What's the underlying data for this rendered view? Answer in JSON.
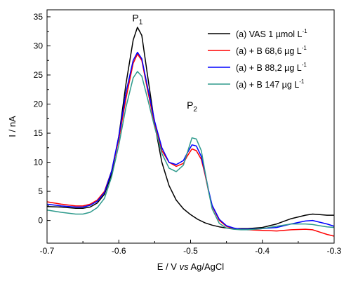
{
  "chart_data": {
    "type": "line",
    "xlabel_prefix": "E / V ",
    "xlabel_italic": "vs",
    "xlabel_suffix": " Ag/AgCl",
    "ylabel": "I / nA",
    "xlim": [
      -0.7,
      -0.3
    ],
    "ylim": [
      -3.9,
      36.2
    ],
    "x_ticks": [
      -0.7,
      -0.6,
      -0.5,
      -0.4,
      -0.3
    ],
    "x_tick_labels": [
      "-0.7",
      "-0.6",
      "-0.5",
      "-0.4",
      "-0.3"
    ],
    "y_ticks": [
      0,
      5,
      10,
      15,
      20,
      25,
      30,
      35
    ],
    "y_tick_labels": [
      "0",
      "5",
      "10",
      "15",
      "20",
      "25",
      "30",
      "35"
    ],
    "grid": false,
    "legend_position": "top-right",
    "annotations": [
      {
        "base": "P",
        "sub": "1",
        "x": -0.574,
        "y": 34.2
      },
      {
        "base": "P",
        "sub": "2",
        "x": -0.498,
        "y": 19.2
      }
    ],
    "series": [
      {
        "label_main": "(a) VAS 1 µmol L",
        "label_sup": "-1",
        "color": "#000000",
        "points": [
          [
            -0.7,
            2.4
          ],
          [
            -0.68,
            2.3
          ],
          [
            -0.66,
            2.1
          ],
          [
            -0.65,
            2.1
          ],
          [
            -0.64,
            2.3
          ],
          [
            -0.63,
            3.0
          ],
          [
            -0.62,
            4.5
          ],
          [
            -0.61,
            8.0
          ],
          [
            -0.6,
            14.5
          ],
          [
            -0.59,
            23.5
          ],
          [
            -0.58,
            31.0
          ],
          [
            -0.574,
            33.2
          ],
          [
            -0.568,
            31.8
          ],
          [
            -0.56,
            25.0
          ],
          [
            -0.55,
            16.5
          ],
          [
            -0.54,
            10.0
          ],
          [
            -0.53,
            6.0
          ],
          [
            -0.52,
            3.5
          ],
          [
            -0.51,
            2.0
          ],
          [
            -0.5,
            1.0
          ],
          [
            -0.49,
            0.2
          ],
          [
            -0.48,
            -0.4
          ],
          [
            -0.47,
            -0.8
          ],
          [
            -0.46,
            -1.1
          ],
          [
            -0.45,
            -1.3
          ],
          [
            -0.44,
            -1.4
          ],
          [
            -0.42,
            -1.4
          ],
          [
            -0.4,
            -1.2
          ],
          [
            -0.38,
            -0.6
          ],
          [
            -0.36,
            0.3
          ],
          [
            -0.34,
            0.9
          ],
          [
            -0.33,
            1.1
          ],
          [
            -0.32,
            1.0
          ],
          [
            -0.31,
            0.9
          ],
          [
            -0.3,
            0.9
          ]
        ]
      },
      {
        "label_main": "(a) + B 68,6 µg L",
        "label_sup": "-1",
        "color": "#ff0000",
        "points": [
          [
            -0.7,
            3.2
          ],
          [
            -0.68,
            2.8
          ],
          [
            -0.66,
            2.5
          ],
          [
            -0.65,
            2.5
          ],
          [
            -0.64,
            2.8
          ],
          [
            -0.63,
            3.5
          ],
          [
            -0.62,
            5.0
          ],
          [
            -0.61,
            8.5
          ],
          [
            -0.6,
            14.0
          ],
          [
            -0.59,
            21.0
          ],
          [
            -0.58,
            27.0
          ],
          [
            -0.574,
            28.6
          ],
          [
            -0.568,
            27.5
          ],
          [
            -0.56,
            22.5
          ],
          [
            -0.55,
            16.5
          ],
          [
            -0.54,
            12.0
          ],
          [
            -0.53,
            10.0
          ],
          [
            -0.52,
            9.3
          ],
          [
            -0.51,
            9.8
          ],
          [
            -0.505,
            11.0
          ],
          [
            -0.498,
            12.3
          ],
          [
            -0.492,
            12.0
          ],
          [
            -0.485,
            10.5
          ],
          [
            -0.48,
            8.0
          ],
          [
            -0.475,
            5.0
          ],
          [
            -0.47,
            2.5
          ],
          [
            -0.46,
            0.0
          ],
          [
            -0.45,
            -1.0
          ],
          [
            -0.44,
            -1.4
          ],
          [
            -0.43,
            -1.5
          ],
          [
            -0.42,
            -1.6
          ],
          [
            -0.4,
            -1.7
          ],
          [
            -0.38,
            -1.8
          ],
          [
            -0.36,
            -1.6
          ],
          [
            -0.34,
            -1.5
          ],
          [
            -0.33,
            -1.6
          ],
          [
            -0.32,
            -2.0
          ],
          [
            -0.31,
            -2.4
          ],
          [
            -0.3,
            -2.7
          ]
        ]
      },
      {
        "label_main": "(a) + B 88,2 µg L",
        "label_sup": "-1",
        "color": "#0000ff",
        "points": [
          [
            -0.7,
            2.8
          ],
          [
            -0.68,
            2.5
          ],
          [
            -0.66,
            2.3
          ],
          [
            -0.65,
            2.3
          ],
          [
            -0.64,
            2.6
          ],
          [
            -0.63,
            3.3
          ],
          [
            -0.62,
            4.8
          ],
          [
            -0.61,
            8.5
          ],
          [
            -0.6,
            14.5
          ],
          [
            -0.59,
            22.0
          ],
          [
            -0.58,
            27.5
          ],
          [
            -0.574,
            28.9
          ],
          [
            -0.568,
            27.8
          ],
          [
            -0.56,
            23.0
          ],
          [
            -0.55,
            17.0
          ],
          [
            -0.54,
            12.5
          ],
          [
            -0.53,
            10.0
          ],
          [
            -0.52,
            9.6
          ],
          [
            -0.51,
            10.3
          ],
          [
            -0.505,
            11.5
          ],
          [
            -0.498,
            13.0
          ],
          [
            -0.492,
            12.8
          ],
          [
            -0.485,
            11.0
          ],
          [
            -0.48,
            8.3
          ],
          [
            -0.475,
            5.2
          ],
          [
            -0.47,
            2.6
          ],
          [
            -0.46,
            0.2
          ],
          [
            -0.45,
            -0.9
          ],
          [
            -0.44,
            -1.3
          ],
          [
            -0.43,
            -1.5
          ],
          [
            -0.42,
            -1.5
          ],
          [
            -0.4,
            -1.4
          ],
          [
            -0.38,
            -1.2
          ],
          [
            -0.36,
            -0.6
          ],
          [
            -0.34,
            -0.1
          ],
          [
            -0.33,
            0.0
          ],
          [
            -0.32,
            -0.3
          ],
          [
            -0.31,
            -0.6
          ],
          [
            -0.3,
            -1.0
          ]
        ]
      },
      {
        "label_main": "(a) + B 147 µg L",
        "label_sup": "-1",
        "color": "#2e9a8c",
        "points": [
          [
            -0.7,
            1.8
          ],
          [
            -0.68,
            1.4
          ],
          [
            -0.66,
            1.1
          ],
          [
            -0.65,
            1.1
          ],
          [
            -0.64,
            1.4
          ],
          [
            -0.63,
            2.2
          ],
          [
            -0.62,
            3.8
          ],
          [
            -0.61,
            7.5
          ],
          [
            -0.6,
            13.0
          ],
          [
            -0.59,
            19.5
          ],
          [
            -0.58,
            24.5
          ],
          [
            -0.574,
            25.6
          ],
          [
            -0.568,
            24.8
          ],
          [
            -0.56,
            21.0
          ],
          [
            -0.55,
            16.0
          ],
          [
            -0.54,
            11.5
          ],
          [
            -0.53,
            9.0
          ],
          [
            -0.52,
            8.4
          ],
          [
            -0.51,
            9.5
          ],
          [
            -0.505,
            11.5
          ],
          [
            -0.498,
            14.2
          ],
          [
            -0.492,
            14.0
          ],
          [
            -0.485,
            12.0
          ],
          [
            -0.48,
            8.5
          ],
          [
            -0.475,
            5.0
          ],
          [
            -0.47,
            2.0
          ],
          [
            -0.46,
            -0.5
          ],
          [
            -0.45,
            -1.3
          ],
          [
            -0.44,
            -1.5
          ],
          [
            -0.43,
            -1.6
          ],
          [
            -0.42,
            -1.6
          ],
          [
            -0.4,
            -1.4
          ],
          [
            -0.38,
            -1.0
          ],
          [
            -0.36,
            -0.6
          ],
          [
            -0.34,
            -0.6
          ],
          [
            -0.33,
            -0.7
          ],
          [
            -0.32,
            -0.9
          ],
          [
            -0.31,
            -1.1
          ],
          [
            -0.3,
            -1.2
          ]
        ]
      }
    ]
  }
}
